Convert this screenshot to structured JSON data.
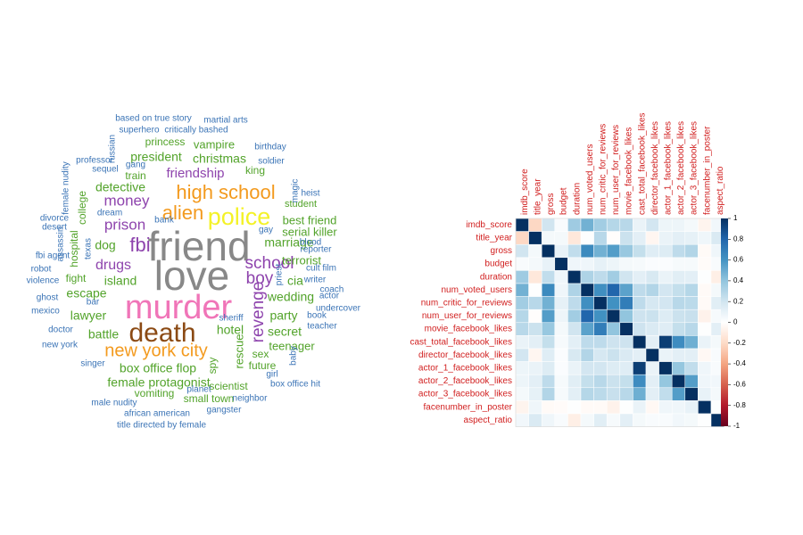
{
  "chart_data": [
    {
      "type": "wordcloud",
      "colors": {
        "largest": "#888888",
        "large": "#f075b8",
        "medium_large": "#8b4a14",
        "medium": "#f39a1e",
        "yellow": "#f4f227",
        "purple": "#8e44ad",
        "green": "#52a32a",
        "blue": "#3b74b6"
      },
      "words": [
        {
          "text": "friend",
          "color": "#888888"
        },
        {
          "text": "love",
          "color": "#888888"
        },
        {
          "text": "murder",
          "color": "#f075b8"
        },
        {
          "text": "death",
          "color": "#8b4a14"
        },
        {
          "text": "police",
          "color": "#f4f227"
        },
        {
          "text": "high school",
          "color": "#f39a1e"
        },
        {
          "text": "new york city",
          "color": "#f39a1e"
        },
        {
          "text": "alien",
          "color": "#f39a1e"
        },
        {
          "text": "fbi",
          "color": "#8e44ad"
        },
        {
          "text": "school",
          "color": "#8e44ad"
        },
        {
          "text": "boy",
          "color": "#8e44ad"
        },
        {
          "text": "revenge",
          "color": "#8e44ad"
        },
        {
          "text": "prison",
          "color": "#8e44ad"
        },
        {
          "text": "money",
          "color": "#8e44ad"
        },
        {
          "text": "drugs",
          "color": "#8e44ad"
        },
        {
          "text": "friendship",
          "color": "#8e44ad"
        },
        {
          "text": "detective",
          "color": "#52a32a"
        },
        {
          "text": "dog",
          "color": "#52a32a"
        },
        {
          "text": "island",
          "color": "#52a32a"
        },
        {
          "text": "escape",
          "color": "#52a32a"
        },
        {
          "text": "lawyer",
          "color": "#52a32a"
        },
        {
          "text": "battle",
          "color": "#52a32a"
        },
        {
          "text": "hotel",
          "color": "#52a32a"
        },
        {
          "text": "box office flop",
          "color": "#52a32a"
        },
        {
          "text": "female protagonist",
          "color": "#52a32a"
        },
        {
          "text": "vomiting",
          "color": "#52a32a"
        },
        {
          "text": "marriage",
          "color": "#52a32a"
        },
        {
          "text": "cia",
          "color": "#52a32a"
        },
        {
          "text": "wedding",
          "color": "#52a32a"
        },
        {
          "text": "party",
          "color": "#52a32a"
        },
        {
          "text": "secret",
          "color": "#52a32a"
        },
        {
          "text": "teenager",
          "color": "#52a32a"
        },
        {
          "text": "christmas",
          "color": "#52a32a"
        },
        {
          "text": "president",
          "color": "#52a32a"
        },
        {
          "text": "vampire",
          "color": "#52a32a"
        },
        {
          "text": "best friend",
          "color": "#52a32a"
        },
        {
          "text": "serial killer",
          "color": "#52a32a"
        },
        {
          "text": "terrorist",
          "color": "#52a32a"
        },
        {
          "text": "rescue",
          "color": "#52a32a"
        },
        {
          "text": "sex",
          "color": "#52a32a"
        },
        {
          "text": "future",
          "color": "#52a32a"
        },
        {
          "text": "scientist",
          "color": "#52a32a"
        },
        {
          "text": "small town",
          "color": "#52a32a"
        },
        {
          "text": "spy",
          "color": "#52a32a"
        },
        {
          "text": "college",
          "color": "#52a32a"
        },
        {
          "text": "hospital",
          "color": "#52a32a"
        },
        {
          "text": "fight",
          "color": "#52a32a"
        },
        {
          "text": "king",
          "color": "#52a32a"
        },
        {
          "text": "princess",
          "color": "#52a32a"
        },
        {
          "text": "train",
          "color": "#52a32a"
        },
        {
          "text": "student",
          "color": "#52a32a"
        },
        {
          "text": "based on true story",
          "color": "#3b74b6"
        },
        {
          "text": "martial arts",
          "color": "#3b74b6"
        },
        {
          "text": "superhero",
          "color": "#3b74b6"
        },
        {
          "text": "critically bashed",
          "color": "#3b74b6"
        },
        {
          "text": "russian",
          "color": "#3b74b6"
        },
        {
          "text": "birthday",
          "color": "#3b74b6"
        },
        {
          "text": "professor",
          "color": "#3b74b6"
        },
        {
          "text": "gang",
          "color": "#3b74b6"
        },
        {
          "text": "soldier",
          "color": "#3b74b6"
        },
        {
          "text": "female nudity",
          "color": "#3b74b6"
        },
        {
          "text": "sequel",
          "color": "#3b74b6"
        },
        {
          "text": "magic",
          "color": "#3b74b6"
        },
        {
          "text": "heist",
          "color": "#3b74b6"
        },
        {
          "text": "dream",
          "color": "#3b74b6"
        },
        {
          "text": "bank",
          "color": "#3b74b6"
        },
        {
          "text": "divorce",
          "color": "#3b74b6"
        },
        {
          "text": "desert",
          "color": "#3b74b6"
        },
        {
          "text": "gay",
          "color": "#3b74b6"
        },
        {
          "text": "blood",
          "color": "#3b74b6"
        },
        {
          "text": "reporter",
          "color": "#3b74b6"
        },
        {
          "text": "texas",
          "color": "#3b74b6"
        },
        {
          "text": "fbi agent",
          "color": "#3b74b6"
        },
        {
          "text": "assassin",
          "color": "#3b74b6"
        },
        {
          "text": "robot",
          "color": "#3b74b6"
        },
        {
          "text": "violence",
          "color": "#3b74b6"
        },
        {
          "text": "priest",
          "color": "#3b74b6"
        },
        {
          "text": "cult film",
          "color": "#3b74b6"
        },
        {
          "text": "writer",
          "color": "#3b74b6"
        },
        {
          "text": "coach",
          "color": "#3b74b6"
        },
        {
          "text": "bar",
          "color": "#3b74b6"
        },
        {
          "text": "ghost",
          "color": "#3b74b6"
        },
        {
          "text": "actor",
          "color": "#3b74b6"
        },
        {
          "text": "mexico",
          "color": "#3b74b6"
        },
        {
          "text": "undercover",
          "color": "#3b74b6"
        },
        {
          "text": "book",
          "color": "#3b74b6"
        },
        {
          "text": "sheriff",
          "color": "#3b74b6"
        },
        {
          "text": "doctor",
          "color": "#3b74b6"
        },
        {
          "text": "teacher",
          "color": "#3b74b6"
        },
        {
          "text": "new york",
          "color": "#3b74b6"
        },
        {
          "text": "singer",
          "color": "#3b74b6"
        },
        {
          "text": "baby",
          "color": "#3b74b6"
        },
        {
          "text": "girl",
          "color": "#3b74b6"
        },
        {
          "text": "box office hit",
          "color": "#3b74b6"
        },
        {
          "text": "planet",
          "color": "#3b74b6"
        },
        {
          "text": "neighbor",
          "color": "#3b74b6"
        },
        {
          "text": "male nudity",
          "color": "#3b74b6"
        },
        {
          "text": "african american",
          "color": "#3b74b6"
        },
        {
          "text": "gangster",
          "color": "#3b74b6"
        },
        {
          "text": "title directed by female",
          "color": "#3b74b6"
        }
      ]
    },
    {
      "type": "heatmap",
      "variables": [
        "imdb_score",
        "title_year",
        "gross",
        "budget",
        "duration",
        "num_voted_users",
        "num_critic_for_reviews",
        "num_user_for_reviews",
        "movie_facebook_likes",
        "cast_total_facebook_likes",
        "director_facebook_likes",
        "actor_1_facebook_likes",
        "actor_2_facebook_likes",
        "actor_3_facebook_likes",
        "facenumber_in_poster",
        "aspect_ratio"
      ],
      "matrix": [
        [
          1.0,
          -0.21,
          0.2,
          0.03,
          0.36,
          0.48,
          0.35,
          0.29,
          0.28,
          0.09,
          0.19,
          0.08,
          0.08,
          0.05,
          -0.06,
          0.06
        ],
        [
          -0.21,
          1.0,
          0.05,
          0.05,
          -0.13,
          0.01,
          0.28,
          -0.01,
          0.22,
          0.12,
          -0.05,
          0.09,
          0.12,
          0.11,
          0.07,
          0.16
        ],
        [
          0.2,
          0.05,
          1.0,
          0.1,
          0.25,
          0.64,
          0.48,
          0.56,
          0.38,
          0.24,
          0.14,
          0.15,
          0.26,
          0.3,
          -0.03,
          0.07
        ],
        [
          0.03,
          0.05,
          0.1,
          1.0,
          0.07,
          0.07,
          0.11,
          0.08,
          0.05,
          0.04,
          0.02,
          0.02,
          0.04,
          0.04,
          -0.02,
          0.03
        ],
        [
          0.36,
          -0.13,
          0.25,
          0.07,
          1.0,
          0.31,
          0.26,
          0.35,
          0.2,
          0.12,
          0.17,
          0.09,
          0.13,
          0.12,
          0.01,
          -0.09
        ],
        [
          0.48,
          0.01,
          0.64,
          0.07,
          0.31,
          1.0,
          0.62,
          0.8,
          0.54,
          0.26,
          0.3,
          0.19,
          0.24,
          0.29,
          -0.03,
          0.05
        ],
        [
          0.35,
          0.28,
          0.48,
          0.11,
          0.26,
          0.62,
          1.0,
          0.61,
          0.7,
          0.26,
          0.18,
          0.19,
          0.28,
          0.27,
          -0.03,
          0.13
        ],
        [
          0.29,
          -0.01,
          0.56,
          0.08,
          0.35,
          0.8,
          0.61,
          1.0,
          0.4,
          0.21,
          0.22,
          0.15,
          0.22,
          0.23,
          -0.07,
          0.04
        ],
        [
          0.28,
          0.22,
          0.38,
          0.05,
          0.2,
          0.54,
          0.7,
          0.4,
          1.0,
          0.21,
          0.16,
          0.14,
          0.24,
          0.28,
          0.01,
          0.12
        ],
        [
          0.09,
          0.12,
          0.24,
          0.04,
          0.12,
          0.26,
          0.26,
          0.21,
          0.21,
          1.0,
          0.12,
          0.95,
          0.63,
          0.49,
          0.09,
          0.05
        ],
        [
          0.19,
          -0.05,
          0.14,
          0.02,
          0.17,
          0.3,
          0.18,
          0.22,
          0.16,
          0.12,
          1.0,
          0.09,
          0.12,
          0.12,
          -0.04,
          0.03
        ],
        [
          0.08,
          0.09,
          0.15,
          0.02,
          0.09,
          0.19,
          0.19,
          0.15,
          0.14,
          0.95,
          0.09,
          1.0,
          0.39,
          0.25,
          0.07,
          0.03
        ],
        [
          0.08,
          0.12,
          0.26,
          0.04,
          0.13,
          0.24,
          0.28,
          0.22,
          0.24,
          0.63,
          0.12,
          0.39,
          1.0,
          0.56,
          0.07,
          0.06
        ],
        [
          0.05,
          0.11,
          0.3,
          0.04,
          0.12,
          0.29,
          0.27,
          0.23,
          0.28,
          0.49,
          0.12,
          0.25,
          0.56,
          1.0,
          0.1,
          0.05
        ],
        [
          -0.06,
          0.07,
          -0.03,
          -0.02,
          0.01,
          -0.03,
          -0.03,
          -0.07,
          0.01,
          0.09,
          -0.04,
          0.07,
          0.07,
          0.1,
          1.0,
          0.01
        ],
        [
          0.06,
          0.16,
          0.07,
          0.03,
          -0.09,
          0.05,
          0.13,
          0.04,
          0.12,
          0.05,
          0.03,
          0.03,
          0.06,
          0.05,
          0.01,
          1.0
        ]
      ],
      "colorbar": {
        "ticks": [
          "1",
          "0.8",
          "0.6",
          "0.4",
          "0.2",
          "0",
          "-0.2",
          "-0.4",
          "-0.6",
          "-0.8",
          "-1"
        ],
        "range": [
          -1,
          1
        ],
        "colors": {
          "negative_end": "#67001f",
          "mid": "#ffffff",
          "positive_end": "#053061"
        }
      },
      "label_color": "#d11f1f"
    }
  ]
}
